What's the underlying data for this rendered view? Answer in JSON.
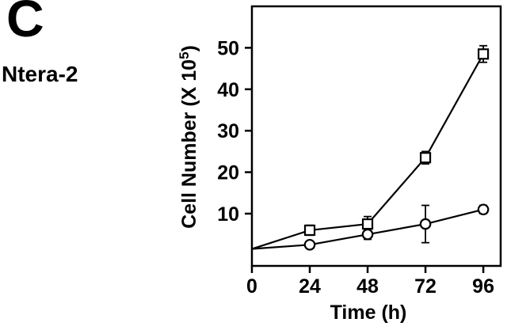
{
  "panel": {
    "letter": "C",
    "cell_line": "Ntera-2"
  },
  "chart_data": {
    "type": "line",
    "title": "",
    "xlabel": "Time (h)",
    "ylabel": "Cell Number (X 10^5)",
    "ylabel_parts": {
      "prefix": "Cell Number (X 10",
      "exponent": "5",
      "suffix": ")"
    },
    "x_ticks": [
      0,
      24,
      48,
      72,
      96
    ],
    "y_ticks": [
      10,
      20,
      30,
      40,
      50
    ],
    "xlim": [
      0,
      103.2
    ],
    "ylim": [
      -2.6,
      60
    ],
    "grid": false,
    "legend": "none",
    "series": [
      {
        "name": "open-squares",
        "marker": "square",
        "color": "#000000",
        "x": [
          0,
          24,
          48,
          72,
          96
        ],
        "y": [
          1.5,
          6,
          7.5,
          23.5,
          48.5
        ],
        "yerr": [
          0,
          1.2,
          1.8,
          1.5,
          2
        ],
        "marker_skip": [
          0
        ]
      },
      {
        "name": "open-circles",
        "marker": "circle",
        "color": "#000000",
        "x": [
          0,
          24,
          48,
          72,
          96
        ],
        "y": [
          1.5,
          2.5,
          5,
          7.5,
          11
        ],
        "yerr": [
          0,
          0.8,
          1.2,
          4.5,
          1
        ],
        "marker_skip": [
          0
        ]
      }
    ]
  }
}
